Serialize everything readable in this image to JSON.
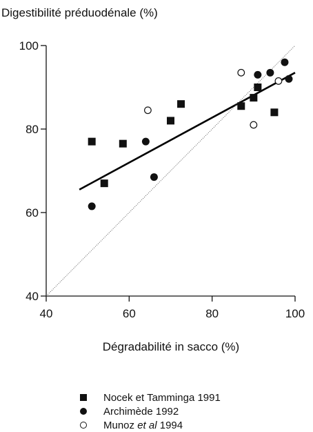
{
  "chart_data": {
    "type": "scatter",
    "title": "Digestibilité préduodénale (%)",
    "xlabel": "Dégradabilité in sacco (%)",
    "ylabel": "Digestibilité préduodénale (%)",
    "xlim": [
      40,
      100
    ],
    "ylim": [
      40,
      100
    ],
    "xticks": [
      40,
      60,
      80,
      100
    ],
    "yticks": [
      40,
      60,
      80,
      100
    ],
    "x_tick_labels": [
      "40",
      "60",
      "80",
      "100"
    ],
    "y_tick_labels": [
      "40",
      "60",
      "80",
      "100"
    ],
    "grid": false,
    "legend_position": "bottom",
    "series": [
      {
        "name": "Nocek et Tamminga 1991",
        "marker": "filled-square",
        "points": [
          [
            51,
            77
          ],
          [
            54,
            67
          ],
          [
            58.5,
            76.5
          ],
          [
            70,
            82
          ],
          [
            72.5,
            86
          ],
          [
            87,
            85.5
          ],
          [
            90,
            87.5
          ],
          [
            91,
            90
          ],
          [
            95,
            84
          ]
        ]
      },
      {
        "name": "Archimède 1992",
        "marker": "filled-circle",
        "points": [
          [
            51,
            61.5
          ],
          [
            64,
            77
          ],
          [
            66,
            68.5
          ],
          [
            91,
            93
          ],
          [
            94,
            93.5
          ],
          [
            97.5,
            96
          ],
          [
            98.5,
            92
          ]
        ]
      },
      {
        "name": "Munoz et al 1994",
        "marker": "open-circle",
        "points": [
          [
            64.5,
            84.5
          ],
          [
            87,
            93.5
          ],
          [
            90,
            81
          ],
          [
            96,
            91.5
          ]
        ]
      }
    ],
    "lines": [
      {
        "kind": "regression",
        "style": "solid-thick",
        "x": [
          48,
          100
        ],
        "y": [
          65.5,
          93.5
        ]
      },
      {
        "kind": "identity",
        "style": "dotted-thin",
        "x": [
          40,
          100
        ],
        "y": [
          40,
          100
        ]
      }
    ]
  },
  "legend": [
    {
      "marker": "filled-square",
      "text": "Nocek et Tamminga 1991"
    },
    {
      "marker": "filled-circle",
      "text": "Archimède 1992"
    },
    {
      "marker": "open-circle",
      "text_before": "Munoz ",
      "text_italic": "et al",
      "text_after": " 1994"
    }
  ]
}
